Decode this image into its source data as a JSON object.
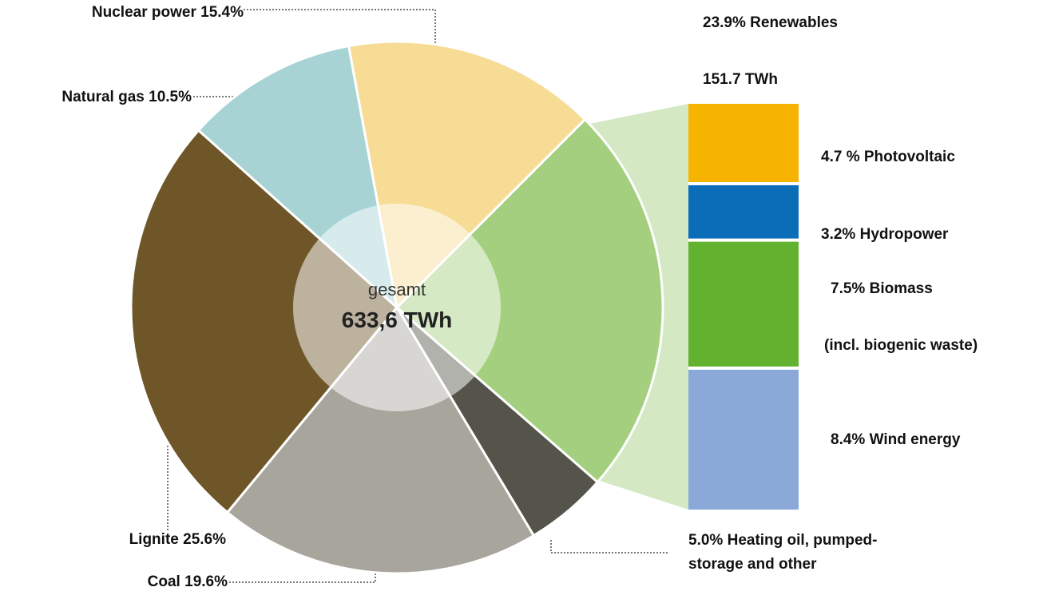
{
  "chart_data": {
    "type": "pie",
    "center_label": "gesamt",
    "total_label": "633,6 TWh",
    "categories": [
      "Renewables",
      "Heating oil, pumped-storage and other",
      "Coal",
      "Lignite",
      "Natural gas",
      "Nuclear power"
    ],
    "values": [
      23.9,
      5.0,
      19.6,
      25.6,
      10.5,
      15.4
    ],
    "value_labels": [
      "23.9%",
      "5.0%",
      "19.6%",
      "25.6%",
      "10.5%",
      "15.4%"
    ],
    "colors": [
      "#a3cf7e",
      "#55544b",
      "#a8a59c",
      "#6e5628",
      "#a7d3d4",
      "#f7dc96"
    ],
    "breakdown": {
      "type": "stacked-bar",
      "total_label": "151.7 TWh",
      "categories": [
        "Photovoltaic",
        "Hydropower",
        "Biomass",
        "Wind energy"
      ],
      "values": [
        4.7,
        3.2,
        7.5,
        8.4
      ],
      "value_labels": [
        "4.7 %",
        "3.2%",
        "7.5%",
        "8.4%"
      ],
      "note": "(incl. biogenic waste)",
      "colors": [
        "#f6b400",
        "#0b6cb8",
        "#63b22f",
        "#8aa8d8"
      ]
    }
  }
}
